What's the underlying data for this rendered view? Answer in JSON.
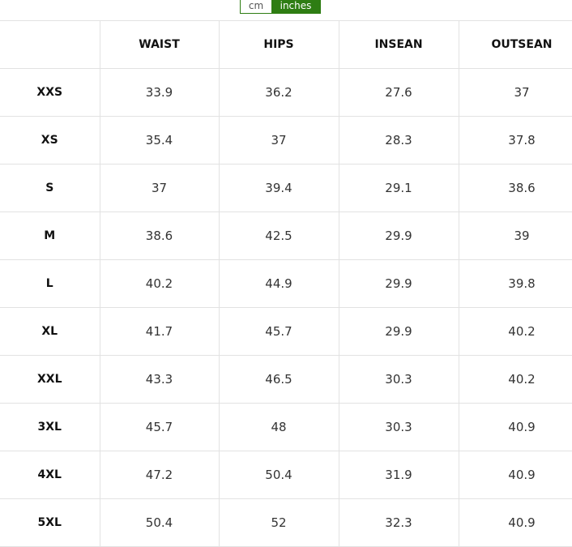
{
  "unit_toggle": {
    "options": [
      "cm",
      "inches"
    ],
    "selected": "inches",
    "accent": "#2e7d13"
  },
  "table": {
    "headers": [
      "",
      "WAIST",
      "HIPS",
      "INSEAN",
      "OUTSEAN"
    ],
    "rows": [
      [
        "XXS",
        "33.9",
        "36.2",
        "27.6",
        "37"
      ],
      [
        "XS",
        "35.4",
        "37",
        "28.3",
        "37.8"
      ],
      [
        "S",
        "37",
        "39.4",
        "29.1",
        "38.6"
      ],
      [
        "M",
        "38.6",
        "42.5",
        "29.9",
        "39"
      ],
      [
        "L",
        "40.2",
        "44.9",
        "29.9",
        "39.8"
      ],
      [
        "XL",
        "41.7",
        "45.7",
        "29.9",
        "40.2"
      ],
      [
        "XXL",
        "43.3",
        "46.5",
        "30.3",
        "40.2"
      ],
      [
        "3XL",
        "45.7",
        "48",
        "30.3",
        "40.9"
      ],
      [
        "4XL",
        "47.2",
        "50.4",
        "31.9",
        "40.9"
      ],
      [
        "5XL",
        "50.4",
        "52",
        "32.3",
        "40.9"
      ]
    ]
  }
}
